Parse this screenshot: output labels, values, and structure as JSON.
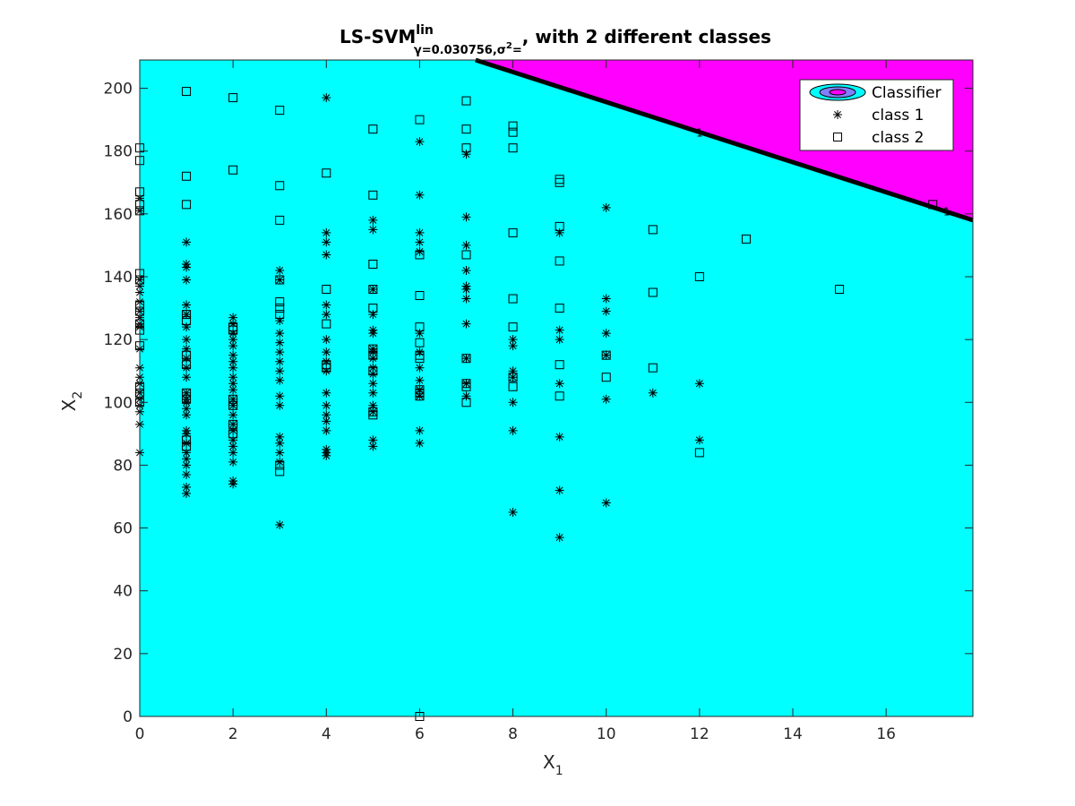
{
  "chart_data": {
    "type": "scatter",
    "title": {
      "main": "LS-SVM",
      "sup": "lin",
      "sub_a": "γ=0.030756,σ",
      "sub_sup": "2",
      "sub_b": "=",
      "rest": ", with 2 different classes"
    },
    "x_label": {
      "text": "X",
      "sub": "1"
    },
    "y_label": {
      "text": "X",
      "sub": "2"
    },
    "xlim": [
      0,
      17.86
    ],
    "ylim": [
      0,
      209
    ],
    "xticks": [
      0,
      2,
      4,
      6,
      8,
      10,
      12,
      14,
      16
    ],
    "yticks": [
      0,
      20,
      40,
      60,
      80,
      100,
      120,
      140,
      160,
      180,
      200
    ],
    "region_colors": {
      "class_1": "#00ffff",
      "class_2": "#ff00ff"
    },
    "boundary": {
      "x": [
        7.2,
        17.86
      ],
      "y": [
        209,
        158
      ]
    },
    "contour_level": 1,
    "contour_label_positions": {
      "x": [
        12.0,
        17.3
      ],
      "y": [
        186,
        161
      ]
    },
    "legend": {
      "location": "northeast",
      "classifier_label": "Classifier"
    },
    "series": [
      {
        "name": "class 1",
        "marker": "asterisk",
        "color": "#000000",
        "x": [
          0,
          0,
          0,
          0,
          0,
          0,
          0,
          0,
          0,
          0,
          0,
          0,
          0,
          0,
          0,
          0,
          0,
          0,
          0,
          0,
          1,
          1,
          1,
          1,
          1,
          1,
          1,
          1,
          1,
          1,
          1,
          1,
          1,
          1,
          1,
          1,
          1,
          1,
          1,
          1,
          1,
          1,
          1,
          1,
          1,
          1,
          2,
          2,
          2,
          2,
          2,
          2,
          2,
          2,
          2,
          2,
          2,
          2,
          2,
          2,
          2,
          2,
          2,
          2,
          2,
          2,
          2,
          2,
          3,
          3,
          3,
          3,
          3,
          3,
          3,
          3,
          3,
          3,
          3,
          3,
          3,
          3,
          3,
          3,
          4,
          4,
          4,
          4,
          4,
          4,
          4,
          4,
          4,
          4,
          4,
          4,
          4,
          4,
          4,
          4,
          4,
          4,
          5,
          5,
          5,
          5,
          5,
          5,
          5,
          5,
          5,
          5,
          5,
          5,
          5,
          5,
          5,
          5,
          5,
          6,
          6,
          6,
          6,
          6,
          6,
          6,
          6,
          6,
          6,
          6,
          6,
          6,
          7,
          7,
          7,
          7,
          7,
          7,
          7,
          7,
          7,
          7,
          7,
          8,
          8,
          8,
          8,
          8,
          8,
          8,
          9,
          9,
          9,
          9,
          9,
          9,
          9,
          10,
          10,
          10,
          10,
          10,
          10,
          10,
          11,
          12,
          12
        ],
        "y": [
          165,
          161,
          139,
          137,
          135,
          132,
          129,
          127,
          125,
          124,
          117,
          111,
          108,
          106,
          103,
          101,
          99,
          97,
          93,
          84,
          151,
          144,
          143,
          139,
          131,
          128,
          124,
          120,
          117,
          114,
          111,
          108,
          103,
          101,
          100,
          98,
          96,
          91,
          90,
          87,
          84,
          82,
          80,
          77,
          73,
          71,
          127,
          125,
          122,
          120,
          118,
          115,
          113,
          111,
          108,
          106,
          104,
          101,
          99,
          96,
          93,
          91,
          88,
          86,
          84,
          81,
          75,
          74,
          142,
          139,
          126,
          122,
          119,
          116,
          113,
          110,
          107,
          102,
          99,
          89,
          87,
          84,
          81,
          61,
          197,
          154,
          151,
          147,
          131,
          128,
          120,
          116,
          113,
          110,
          103,
          99,
          96,
          94,
          91,
          85,
          84,
          83,
          158,
          155,
          136,
          128,
          123,
          122,
          117,
          116,
          114,
          111,
          109,
          106,
          103,
          99,
          97,
          88,
          86,
          183,
          166,
          154,
          151,
          148,
          122,
          116,
          111,
          107,
          104,
          102,
          91,
          87,
          179,
          159,
          150,
          142,
          137,
          136,
          133,
          125,
          114,
          106,
          102,
          120,
          118,
          110,
          108,
          100,
          91,
          65,
          154,
          123,
          120,
          106,
          89,
          72,
          57,
          162,
          133,
          129,
          122,
          115,
          101,
          68,
          103,
          106,
          88
        ]
      },
      {
        "name": "class 2",
        "marker": "square",
        "color": "#000000",
        "x": [
          0,
          0,
          0,
          0,
          0,
          0,
          0,
          0,
          0,
          0,
          0,
          0,
          0,
          0,
          0,
          1,
          1,
          1,
          1,
          1,
          1,
          1,
          1,
          1,
          1,
          1,
          2,
          2,
          2,
          2,
          2,
          2,
          2,
          2,
          3,
          3,
          3,
          3,
          3,
          3,
          3,
          3,
          3,
          4,
          4,
          4,
          4,
          4,
          5,
          5,
          5,
          5,
          5,
          5,
          5,
          5,
          5,
          5,
          6,
          6,
          6,
          6,
          6,
          6,
          6,
          6,
          6,
          6,
          6,
          7,
          7,
          7,
          7,
          7,
          7,
          7,
          7,
          8,
          8,
          8,
          8,
          8,
          8,
          8,
          8,
          9,
          9,
          9,
          9,
          9,
          9,
          9,
          10,
          10,
          11,
          11,
          11,
          12,
          12,
          13,
          15,
          17
        ],
        "y": [
          181,
          177,
          167,
          163,
          161,
          141,
          139,
          131,
          129,
          125,
          123,
          118,
          105,
          103,
          100,
          199,
          172,
          163,
          128,
          126,
          115,
          112,
          103,
          101,
          88,
          86,
          197,
          174,
          124,
          123,
          101,
          99,
          93,
          90,
          193,
          169,
          158,
          139,
          132,
          130,
          128,
          80,
          78,
          173,
          136,
          125,
          112,
          111,
          187,
          166,
          144,
          136,
          130,
          117,
          115,
          110,
          97,
          96,
          190,
          147,
          134,
          124,
          119,
          115,
          114,
          104,
          103,
          102,
          0,
          196,
          187,
          181,
          147,
          114,
          106,
          105,
          100,
          188,
          186,
          181,
          154,
          133,
          124,
          108,
          105,
          171,
          170,
          156,
          145,
          130,
          112,
          102,
          115,
          108,
          155,
          135,
          111,
          140,
          84,
          152,
          136,
          163
        ]
      }
    ]
  }
}
